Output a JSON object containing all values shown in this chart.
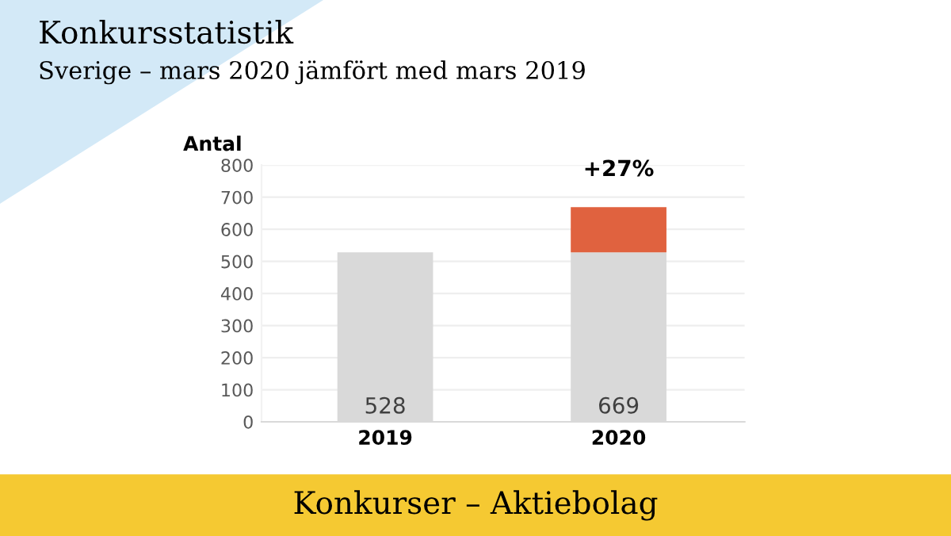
{
  "chart_data": {
    "type": "bar",
    "title": "Konkursstatistik",
    "subtitle": "Sverige – mars 2020 jämfört med mars 2019",
    "ylabel": "Antal",
    "categories": [
      "2019",
      "2020"
    ],
    "stacked": true,
    "series": [
      {
        "color": "#d9d9d9",
        "values": [
          528,
          528
        ]
      },
      {
        "color": "#e0623f",
        "values": [
          null,
          141
        ]
      }
    ],
    "totals": [
      "528",
      "669"
    ],
    "ylim": [
      0,
      800
    ],
    "yticks": [
      0,
      100,
      200,
      300,
      400,
      500,
      600,
      700,
      800
    ],
    "grid": "y",
    "annotations": [
      {
        "text": "+27%",
        "x": "2020",
        "y": 669
      },
      "Konkurser – Aktiebolag"
    ]
  }
}
